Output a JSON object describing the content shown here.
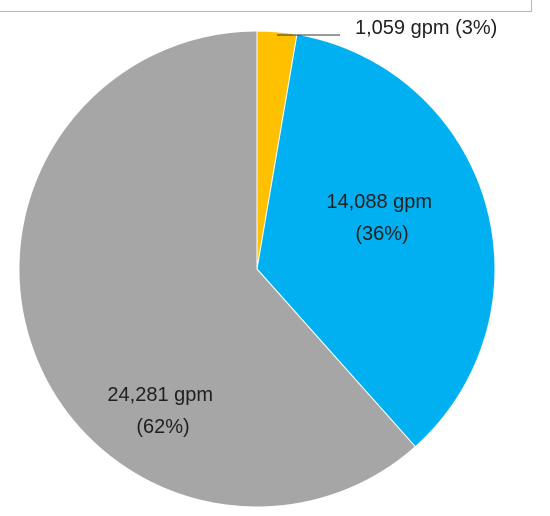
{
  "chart_data": {
    "type": "pie",
    "title": "",
    "unit": "gpm",
    "slices": [
      {
        "value": 1059,
        "percent": 3,
        "label_lines": [
          "1,059 gpm (3%)"
        ],
        "color": "#ffc000"
      },
      {
        "value": 14088,
        "percent": 36,
        "label_lines": [
          "14,088 gpm",
          "(36%)"
        ],
        "color": "#00b0f0"
      },
      {
        "value": 24281,
        "percent": 62,
        "label_lines": [
          "24,281 gpm",
          "(62%)"
        ],
        "color": "#a6a6a6"
      }
    ],
    "start_angle": "12 o'clock",
    "direction": "clockwise",
    "legend": "none"
  }
}
